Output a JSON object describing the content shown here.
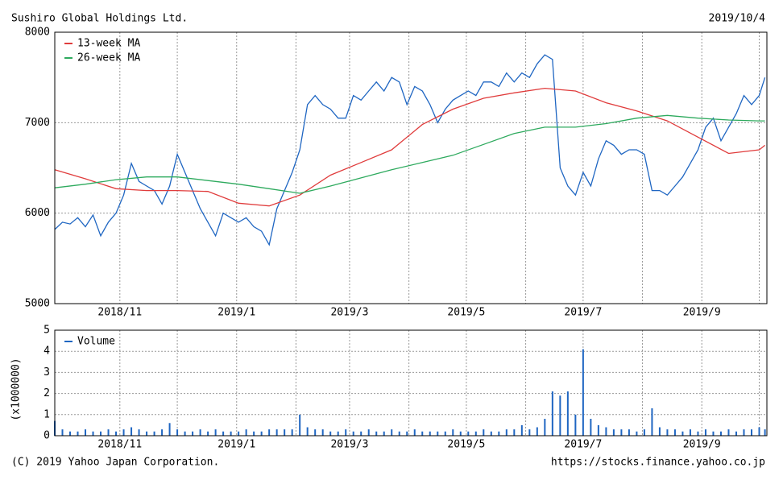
{
  "header": {
    "title": "Sushiro Global Holdings Ltd.",
    "date": "2019/10/4"
  },
  "footer": {
    "copyright": "(C) 2019 Yahoo Japan Corporation.",
    "url": "https://stocks.finance.yahoo.co.jp"
  },
  "chart_data": [
    {
      "type": "line",
      "x": [
        0,
        4,
        8,
        12,
        16,
        20,
        24,
        28,
        32,
        36,
        40,
        44,
        48,
        52,
        56,
        60,
        64,
        68,
        72,
        76,
        80,
        84,
        88,
        92,
        96,
        100,
        104,
        108,
        112,
        116,
        120,
        124,
        128,
        132,
        136,
        140,
        144,
        148,
        152,
        156,
        160,
        164,
        168,
        172,
        176,
        180,
        184,
        188,
        192,
        196,
        200,
        204,
        208,
        212,
        216,
        220,
        224,
        228,
        232,
        236,
        240,
        244,
        248,
        252,
        256,
        260,
        264,
        268,
        272,
        276,
        280,
        284,
        288,
        292,
        296,
        300,
        304,
        308,
        312,
        316,
        320,
        324,
        328,
        332,
        336,
        340,
        344,
        348,
        352,
        356,
        360,
        364,
        368,
        371
      ],
      "xlim": [
        0,
        372
      ],
      "xticks": [
        {
          "value": 34,
          "label": "2018/11"
        },
        {
          "value": 95,
          "label": "2019/1"
        },
        {
          "value": 154,
          "label": "2019/3"
        },
        {
          "value": 215,
          "label": "2019/5"
        },
        {
          "value": 276,
          "label": "2019/7"
        },
        {
          "value": 338,
          "label": "2019/9"
        }
      ],
      "xminor": [
        64,
        126,
        185,
        246,
        307,
        368
      ],
      "ylim": [
        5000,
        8000
      ],
      "yticks": [
        5000,
        6000,
        7000,
        8000
      ],
      "grid": true,
      "legend": "upper left",
      "series": [
        {
          "color": "#1f66c2",
          "values": [
            5820,
            5900,
            5880,
            5950,
            5850,
            5980,
            5750,
            5900,
            6000,
            6200,
            6550,
            6350,
            6300,
            6250,
            6100,
            6300,
            6650,
            6450,
            6250,
            6050,
            5900,
            5750,
            6000,
            5950,
            5900,
            5950,
            5850,
            5800,
            5650,
            6050,
            6250,
            6450,
            6700,
            7200,
            7300,
            7200,
            7150,
            7050,
            7050,
            7300,
            7250,
            7350,
            7450,
            7350,
            7500,
            7450,
            7200,
            7400,
            7350,
            7200,
            7000,
            7150,
            7250,
            7300,
            7350,
            7300,
            7450,
            7450,
            7400,
            7550,
            7450,
            7550,
            7500,
            7650,
            7750,
            7700,
            6500,
            6300,
            6200,
            6450,
            6300,
            6600,
            6800,
            6750,
            6650,
            6700,
            6700,
            6650,
            6250,
            6250,
            6200,
            6300,
            6400,
            6550,
            6700,
            6950,
            7050,
            6800,
            6950,
            7100,
            7300,
            7200,
            7300,
            7500
          ]
        },
        {
          "name": "13-week MA",
          "color": "#e03c3c",
          "x": [
            0,
            16,
            32,
            48,
            64,
            80,
            96,
            112,
            128,
            144,
            160,
            176,
            192,
            208,
            224,
            240,
            256,
            272,
            288,
            304,
            320,
            336,
            352,
            368,
            371
          ],
          "values": [
            6480,
            6380,
            6270,
            6250,
            6250,
            6240,
            6110,
            6080,
            6200,
            6420,
            6560,
            6700,
            6980,
            7150,
            7270,
            7330,
            7380,
            7350,
            7220,
            7130,
            7020,
            6840,
            6660,
            6700,
            6750
          ]
        },
        {
          "name": "26-week MA",
          "color": "#2eaa5e",
          "x": [
            0,
            16,
            32,
            48,
            64,
            80,
            96,
            112,
            128,
            144,
            160,
            176,
            192,
            208,
            224,
            240,
            256,
            272,
            288,
            304,
            320,
            336,
            352,
            368,
            371
          ],
          "values": [
            6280,
            6320,
            6370,
            6400,
            6400,
            6360,
            6320,
            6270,
            6220,
            6300,
            6390,
            6480,
            6560,
            6640,
            6760,
            6880,
            6950,
            6950,
            6990,
            7050,
            7080,
            7050,
            7030,
            7020,
            7020
          ]
        }
      ]
    },
    {
      "type": "bar",
      "x": [
        0,
        4,
        8,
        12,
        16,
        20,
        24,
        28,
        32,
        36,
        40,
        44,
        48,
        52,
        56,
        60,
        64,
        68,
        72,
        76,
        80,
        84,
        88,
        92,
        96,
        100,
        104,
        108,
        112,
        116,
        120,
        124,
        128,
        132,
        136,
        140,
        144,
        148,
        152,
        156,
        160,
        164,
        168,
        172,
        176,
        180,
        184,
        188,
        192,
        196,
        200,
        204,
        208,
        212,
        216,
        220,
        224,
        228,
        232,
        236,
        240,
        244,
        248,
        252,
        256,
        260,
        264,
        268,
        272,
        276,
        280,
        284,
        288,
        292,
        296,
        300,
        304,
        308,
        312,
        316,
        320,
        324,
        328,
        332,
        336,
        340,
        344,
        348,
        352,
        356,
        360,
        364,
        368,
        371
      ],
      "xlim": [
        0,
        372
      ],
      "xticks": [
        {
          "value": 34,
          "label": "2018/11"
        },
        {
          "value": 95,
          "label": "2019/1"
        },
        {
          "value": 154,
          "label": "2019/3"
        },
        {
          "value": 215,
          "label": "2019/5"
        },
        {
          "value": 276,
          "label": "2019/7"
        },
        {
          "value": 338,
          "label": "2019/9"
        }
      ],
      "xminor": [
        64,
        126,
        185,
        246,
        307,
        368
      ],
      "y_label": "(x1000000)",
      "ylim": [
        0,
        5
      ],
      "yticks": [
        0,
        1,
        2,
        3,
        4,
        5
      ],
      "grid": true,
      "legend": "upper left",
      "series": [
        {
          "name": "Volume",
          "color": "#1f66c2",
          "values": [
            0.7,
            0.3,
            0.2,
            0.2,
            0.3,
            0.2,
            0.2,
            0.3,
            0.2,
            0.3,
            0.4,
            0.3,
            0.2,
            0.2,
            0.3,
            0.6,
            0.3,
            0.2,
            0.2,
            0.3,
            0.2,
            0.3,
            0.2,
            0.2,
            0.2,
            0.3,
            0.2,
            0.2,
            0.3,
            0.3,
            0.3,
            0.3,
            1.0,
            0.4,
            0.3,
            0.3,
            0.2,
            0.2,
            0.3,
            0.2,
            0.2,
            0.3,
            0.2,
            0.2,
            0.3,
            0.2,
            0.2,
            0.3,
            0.2,
            0.2,
            0.2,
            0.2,
            0.3,
            0.2,
            0.2,
            0.2,
            0.3,
            0.2,
            0.2,
            0.3,
            0.3,
            0.5,
            0.3,
            0.4,
            0.8,
            2.1,
            1.9,
            2.1,
            1.0,
            4.1,
            0.8,
            0.5,
            0.4,
            0.3,
            0.3,
            0.3,
            0.2,
            0.3,
            1.3,
            0.4,
            0.3,
            0.3,
            0.2,
            0.3,
            0.2,
            0.3,
            0.2,
            0.2,
            0.3,
            0.2,
            0.3,
            0.3,
            0.4,
            0.3
          ]
        }
      ]
    }
  ]
}
